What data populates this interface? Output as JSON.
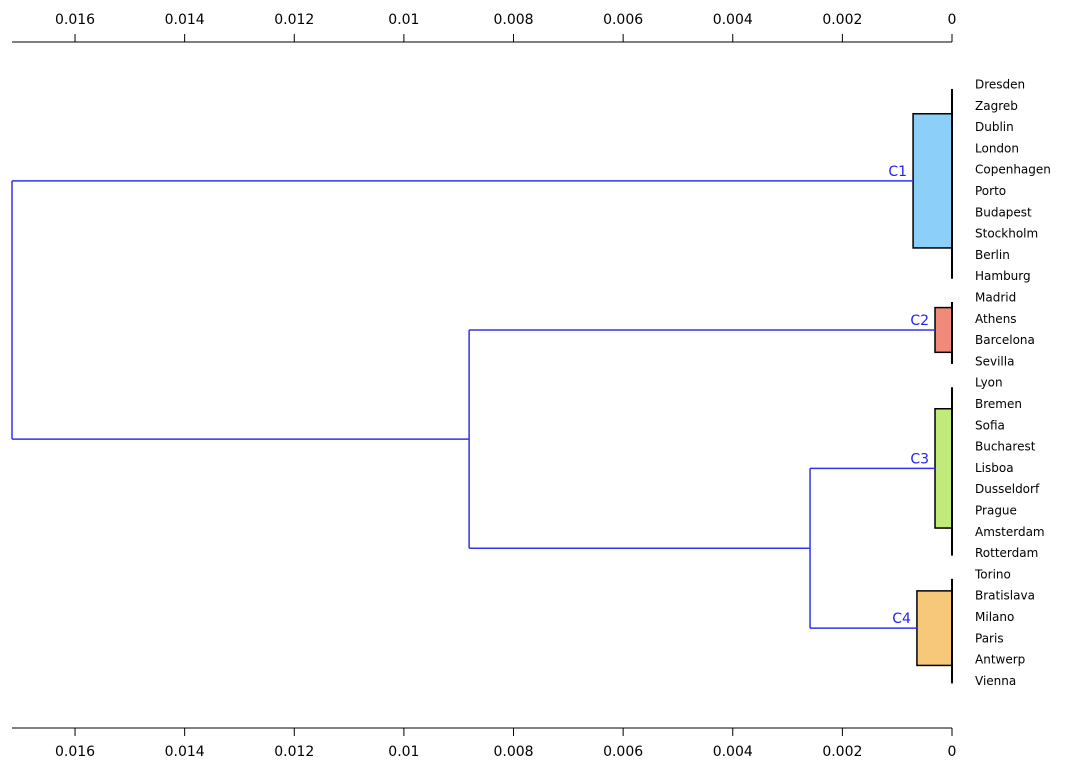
{
  "chart_data": {
    "type": "dendrogram",
    "xlim": [
      0.01715,
      0
    ],
    "xticks": [
      0.016,
      0.014,
      0.012,
      0.01,
      0.008,
      0.006,
      0.004,
      0.002,
      0
    ],
    "link_color": "#3333ee",
    "tree": {
      "height": 0.01715,
      "children": [
        {
          "label": "C1",
          "color": "#8ccff8",
          "height": 0.00071,
          "leaves": [
            "Dresden",
            "Zagreb",
            "Dublin",
            "London",
            "Copenhagen",
            "Porto",
            "Budapest",
            "Stockholm",
            "Berlin",
            "Hamburg"
          ]
        },
        {
          "height": 0.00881,
          "children": [
            {
              "label": "C2",
              "color": "#f08a7a",
              "height": 0.00031,
              "leaves": [
                "Madrid",
                "Athens",
                "Barcelona",
                "Sevilla"
              ]
            },
            {
              "height": 0.00259,
              "children": [
                {
                  "label": "C3",
                  "color": "#c2ea78",
                  "height": 0.00031,
                  "leaves": [
                    "Lyon",
                    "Bremen",
                    "Sofia",
                    "Bucharest",
                    "Lisboa",
                    "Dusseldorf",
                    "Prague",
                    "Amsterdam",
                    "Rotterdam"
                  ]
                },
                {
                  "label": "C4",
                  "color": "#f8c87a",
                  "height": 0.00064,
                  "leaves": [
                    "Torino",
                    "Bratislava",
                    "Milano",
                    "Paris",
                    "Antwerp",
                    "Vienna"
                  ]
                }
              ]
            }
          ]
        }
      ]
    }
  }
}
